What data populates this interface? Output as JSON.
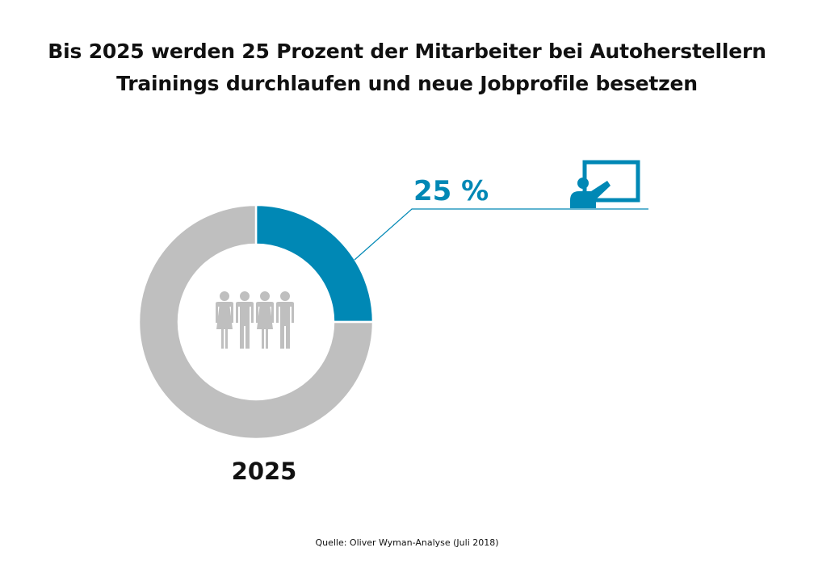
{
  "title": {
    "line1": "Bis 2025 werden 25 Prozent der Mitarbeiter bei Autoherstellern",
    "line2": "Trainings durchlaufen und neue Jobprofile besetzen"
  },
  "chart_data": {
    "type": "pie",
    "style": "donut",
    "title": "Bis 2025 werden 25 Prozent der Mitarbeiter bei Autoherstellern Trainings durchlaufen und neue Jobprofile besetzen",
    "category_label": "2025",
    "slices": [
      {
        "value": 25,
        "color": "#0088b5",
        "highlighted": true
      },
      {
        "value": 75,
        "color": "#bfbfbf"
      }
    ],
    "callout": {
      "label": "25 %",
      "icon": "presentation-training-icon"
    },
    "center_icon": "people-group-icon"
  },
  "colors": {
    "accent": "#0088b5",
    "remainder": "#bfbfbf",
    "center_icon": "#bfbfbf",
    "text": "#111111"
  },
  "source": "Quelle: Oliver Wyman-Analyse (Juli 2018)"
}
